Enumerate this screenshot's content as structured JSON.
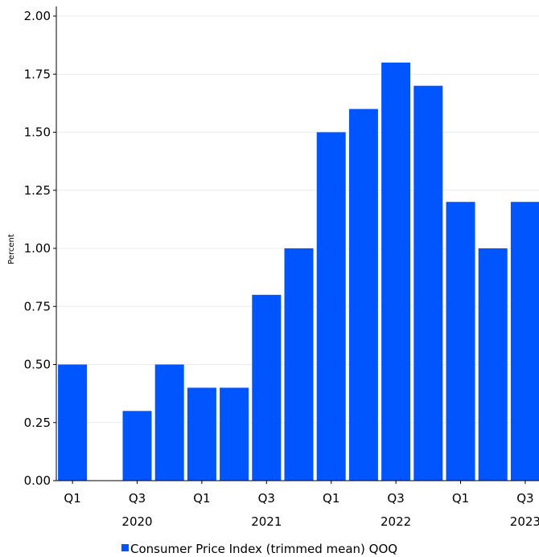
{
  "chart_data": {
    "type": "bar",
    "categories": [
      "Q1 2020",
      "Q2 2020",
      "Q3 2020",
      "Q4 2020",
      "Q1 2021",
      "Q2 2021",
      "Q3 2021",
      "Q4 2021",
      "Q1 2022",
      "Q2 2022",
      "Q3 2022",
      "Q4 2022",
      "Q1 2023",
      "Q2 2023",
      "Q3 2023"
    ],
    "series": [
      {
        "name": "Consumer Price Index (trimmed mean) QOQ",
        "values": [
          0.5,
          0.0,
          0.3,
          0.5,
          0.4,
          0.4,
          0.8,
          1.0,
          1.5,
          1.6,
          1.8,
          1.7,
          1.2,
          1.0,
          1.2
        ],
        "color": "#0055ff"
      }
    ],
    "xlabel": "",
    "ylabel": "Percent",
    "ylim": [
      0,
      2.0
    ],
    "yticks": [
      "0.00",
      "0.25",
      "0.50",
      "0.75",
      "1.00",
      "1.25",
      "1.50",
      "1.75",
      "2.00"
    ],
    "xticks": [
      {
        "label": "Q1",
        "index": 0
      },
      {
        "label": "Q3",
        "index": 2
      },
      {
        "label": "Q1",
        "index": 4
      },
      {
        "label": "Q3",
        "index": 6
      },
      {
        "label": "Q1",
        "index": 8
      },
      {
        "label": "Q3",
        "index": 10
      },
      {
        "label": "Q1",
        "index": 12
      },
      {
        "label": "Q3",
        "index": 14
      }
    ],
    "year_labels": [
      {
        "label": "2020",
        "index": 2
      },
      {
        "label": "2021",
        "index": 6
      },
      {
        "label": "2022",
        "index": 10
      },
      {
        "label": "2023",
        "index": 14
      }
    ],
    "grid": true,
    "legend_position": "bottom-center",
    "colors": {
      "bar": "#0055ff",
      "grid": "#ececec",
      "axis": "#000000"
    }
  }
}
